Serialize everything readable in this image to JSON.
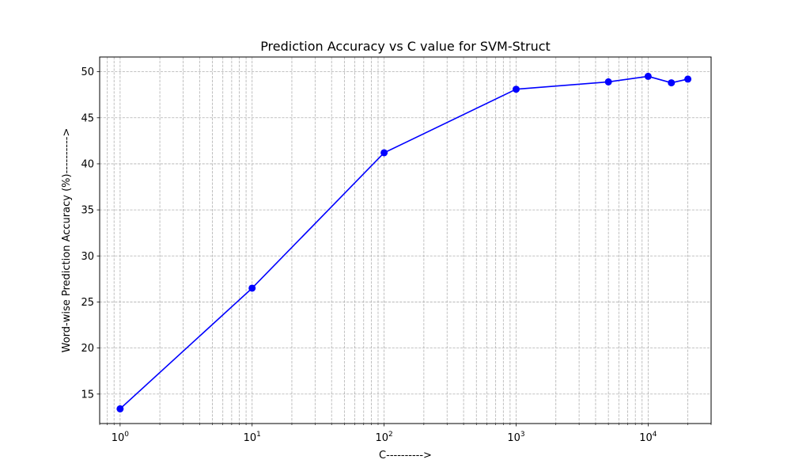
{
  "chart_data": {
    "type": "line",
    "title": "Prediction Accuracy vs C value for SVM-Struct",
    "xlabel": "C---------->",
    "ylabel": "Word-wise Prediction Accuracy (%)---------->",
    "x_scale": "log",
    "xlim": [
      0.7,
      30000
    ],
    "ylim": [
      11.8,
      51.6
    ],
    "grid": true,
    "x_ticks": [
      {
        "value": 1,
        "base": "10",
        "exp": "0"
      },
      {
        "value": 10,
        "base": "10",
        "exp": "1"
      },
      {
        "value": 100,
        "base": "10",
        "exp": "2"
      },
      {
        "value": 1000,
        "base": "10",
        "exp": "3"
      },
      {
        "value": 10000,
        "base": "10",
        "exp": "4"
      }
    ],
    "y_ticks": [
      15,
      20,
      25,
      30,
      35,
      40,
      45,
      50
    ],
    "series": [
      {
        "color": "#0000ff",
        "marker": "circle",
        "x": [
          1,
          10,
          100,
          1000,
          5000,
          10000,
          15000,
          20000
        ],
        "y": [
          13.4,
          26.5,
          41.2,
          48.1,
          48.9,
          49.5,
          48.8,
          49.2
        ]
      }
    ]
  }
}
